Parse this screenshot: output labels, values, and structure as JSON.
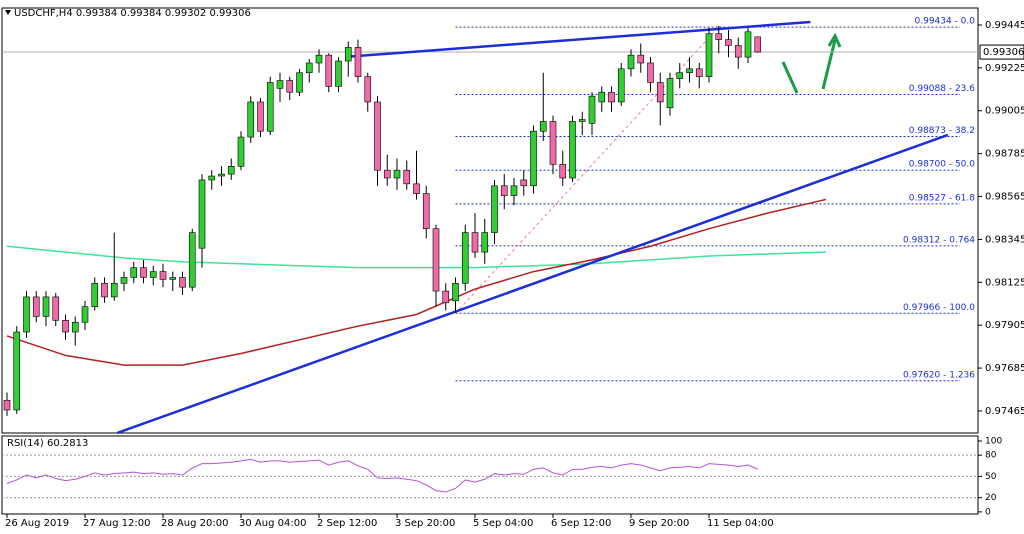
{
  "chart_data": [
    {
      "type": "candlestick",
      "title": "USDCHF,H4  0.99384 0.99384 0.99302 0.99306",
      "up_color": "#32cd32",
      "down_color": "#f06aa8",
      "wick_color": "#000000",
      "candles": [
        [
          0.9752,
          0.9756,
          0.9744,
          0.9747
        ],
        [
          0.9747,
          0.979,
          0.9745,
          0.9787
        ],
        [
          0.9787,
          0.9808,
          0.9784,
          0.9805
        ],
        [
          0.9805,
          0.9808,
          0.9792,
          0.9795
        ],
        [
          0.9795,
          0.9808,
          0.979,
          0.9805
        ],
        [
          0.9805,
          0.9807,
          0.979,
          0.9793
        ],
        [
          0.9793,
          0.9796,
          0.9783,
          0.9787
        ],
        [
          0.9787,
          0.9795,
          0.978,
          0.9792
        ],
        [
          0.9792,
          0.9803,
          0.9788,
          0.98
        ],
        [
          0.98,
          0.9815,
          0.9798,
          0.9812
        ],
        [
          0.9812,
          0.9815,
          0.9802,
          0.9805
        ],
        [
          0.9805,
          0.9838,
          0.9803,
          0.9812
        ],
        [
          0.9812,
          0.9818,
          0.9808,
          0.9815
        ],
        [
          0.9815,
          0.9823,
          0.9812,
          0.982
        ],
        [
          0.982,
          0.9824,
          0.9812,
          0.9815
        ],
        [
          0.9815,
          0.9821,
          0.9811,
          0.9818
        ],
        [
          0.9818,
          0.9822,
          0.981,
          0.9814
        ],
        [
          0.9814,
          0.9818,
          0.9808,
          0.9815
        ],
        [
          0.9815,
          0.9818,
          0.9806,
          0.981
        ],
        [
          0.981,
          0.984,
          0.9808,
          0.9838
        ],
        [
          0.983,
          0.9868,
          0.982,
          0.9865
        ],
        [
          0.9865,
          0.987,
          0.986,
          0.9867
        ],
        [
          0.9867,
          0.9872,
          0.9862,
          0.9868
        ],
        [
          0.9868,
          0.9876,
          0.9865,
          0.9872
        ],
        [
          0.9872,
          0.989,
          0.987,
          0.9887
        ],
        [
          0.9887,
          0.9908,
          0.9884,
          0.9905
        ],
        [
          0.9905,
          0.9907,
          0.9887,
          0.989
        ],
        [
          0.989,
          0.9918,
          0.9888,
          0.9915
        ],
        [
          0.9912,
          0.992,
          0.9905,
          0.9916
        ],
        [
          0.9916,
          0.9918,
          0.9906,
          0.991
        ],
        [
          0.991,
          0.9922,
          0.9908,
          0.992
        ],
        [
          0.992,
          0.9927,
          0.9915,
          0.9925
        ],
        [
          0.9925,
          0.9932,
          0.992,
          0.9929
        ],
        [
          0.9929,
          0.993,
          0.991,
          0.9913
        ],
        [
          0.9913,
          0.9928,
          0.991,
          0.9926
        ],
        [
          0.9926,
          0.9936,
          0.9918,
          0.9933
        ],
        [
          0.9933,
          0.9937,
          0.9915,
          0.9918
        ],
        [
          0.9918,
          0.992,
          0.99,
          0.9905
        ],
        [
          0.9905,
          0.9908,
          0.9862,
          0.987
        ],
        [
          0.987,
          0.9878,
          0.9862,
          0.9866
        ],
        [
          0.9866,
          0.9876,
          0.986,
          0.987
        ],
        [
          0.987,
          0.9875,
          0.986,
          0.9863
        ],
        [
          0.9863,
          0.988,
          0.9855,
          0.9858
        ],
        [
          0.9858,
          0.9862,
          0.9835,
          0.984
        ],
        [
          0.984,
          0.9842,
          0.98,
          0.9808
        ],
        [
          0.9808,
          0.9812,
          0.9798,
          0.9802
        ],
        [
          0.9803,
          0.9815,
          0.9797,
          0.9812
        ],
        [
          0.9812,
          0.9842,
          0.9808,
          0.9838
        ],
        [
          0.9838,
          0.9848,
          0.9825,
          0.9828
        ],
        [
          0.9828,
          0.9845,
          0.9822,
          0.9838
        ],
        [
          0.9838,
          0.9865,
          0.9832,
          0.9862
        ],
        [
          0.9862,
          0.9868,
          0.985,
          0.9857
        ],
        [
          0.9857,
          0.9866,
          0.9852,
          0.9862
        ],
        [
          0.9865,
          0.987,
          0.9857,
          0.9862
        ],
        [
          0.9862,
          0.9893,
          0.9858,
          0.989
        ],
        [
          0.989,
          0.992,
          0.9885,
          0.9895
        ],
        [
          0.9895,
          0.9898,
          0.9868,
          0.9873
        ],
        [
          0.9873,
          0.988,
          0.9862,
          0.9866
        ],
        [
          0.9866,
          0.9898,
          0.9864,
          0.9895
        ],
        [
          0.9895,
          0.99,
          0.9888,
          0.9896
        ],
        [
          0.9894,
          0.991,
          0.9888,
          0.9908
        ],
        [
          0.9905,
          0.9913,
          0.99,
          0.991
        ],
        [
          0.991,
          0.9913,
          0.99,
          0.9905
        ],
        [
          0.9905,
          0.9925,
          0.9903,
          0.9922
        ],
        [
          0.9922,
          0.9932,
          0.9918,
          0.9929
        ],
        [
          0.9929,
          0.9935,
          0.992,
          0.9925
        ],
        [
          0.9925,
          0.9928,
          0.991,
          0.9915
        ],
        [
          0.9915,
          0.992,
          0.9893,
          0.9905
        ],
        [
          0.9902,
          0.992,
          0.9898,
          0.9917
        ],
        [
          0.9917,
          0.9925,
          0.9912,
          0.992
        ],
        [
          0.992,
          0.9928,
          0.9915,
          0.9922
        ],
        [
          0.9922,
          0.9925,
          0.9912,
          0.9918
        ],
        [
          0.9918,
          0.9943,
          0.9915,
          0.994
        ],
        [
          0.994,
          0.9944,
          0.993,
          0.9937
        ],
        [
          0.9937,
          0.9942,
          0.9928,
          0.9934
        ],
        [
          0.9934,
          0.9938,
          0.9922,
          0.9928
        ],
        [
          0.9928,
          0.9943,
          0.9925,
          0.9941
        ],
        [
          0.99384,
          0.99384,
          0.99302,
          0.99306
        ]
      ],
      "ylim": [
        0.97352,
        0.99532
      ],
      "yticks": [
        0.99445,
        0.99225,
        0.99005,
        0.98785,
        0.98565,
        0.98345,
        0.98125,
        0.97905,
        0.97685,
        0.97465
      ],
      "last_price": 0.99306,
      "x_labels": [
        "26 Aug 2019",
        "27 Aug 12:00",
        "28 Aug 20:00",
        "30 Aug 04:00",
        "2 Sep 12:00",
        "3 Sep 20:00",
        "5 Sep 04:00",
        "6 Sep 12:00",
        "9 Sep 20:00",
        "11 Sep 04:00"
      ],
      "moving_averages": [
        {
          "color": "#3ee39a",
          "x": [
            0,
            6,
            12,
            18,
            24,
            30,
            36,
            42,
            48,
            54,
            60,
            66,
            72,
            78,
            84
          ],
          "values": [
            0.9831,
            0.9828,
            0.9825,
            0.9823,
            0.9822,
            0.9821,
            0.982,
            0.982,
            0.982,
            0.9821,
            0.9822,
            0.9824,
            0.9826,
            0.9827,
            0.9828
          ]
        },
        {
          "color": "#b22222",
          "x": [
            0,
            6,
            12,
            18,
            24,
            30,
            36,
            42,
            48,
            54,
            60,
            66,
            72,
            78,
            84
          ],
          "values": [
            0.9785,
            0.9775,
            0.977,
            0.977,
            0.9776,
            0.9783,
            0.979,
            0.9796,
            0.9809,
            0.9818,
            0.9824,
            0.9831,
            0.984,
            0.9848,
            0.9855
          ]
        }
      ],
      "trendlines": [
        {
          "color": "#1c2fd6",
          "points": [
            [
              11.3,
              0.97352
            ],
            [
              96.5,
              0.98881
            ]
          ]
        },
        {
          "color": "#1c2fd6",
          "points": [
            [
              34.7,
              0.99281
            ],
            [
              82.4,
              0.9946
            ]
          ]
        }
      ],
      "fib": {
        "color": "#1c2fd6",
        "line_color": "#f08080",
        "from": 46,
        "to": 73,
        "levels": [
          {
            "value": 0.99434,
            "label": "0.99434 - 0.0"
          },
          {
            "value": 0.99088,
            "label": "0.99088 - 23.6"
          },
          {
            "value": 0.98873,
            "label": "0.98873 - 38.2"
          },
          {
            "value": 0.987,
            "label": "0.98700 - 50.0"
          },
          {
            "value": 0.98527,
            "label": "0.98527 - 61.8"
          },
          {
            "value": 0.98312,
            "label": "0.98312 - 0.764"
          },
          {
            "value": 0.97966,
            "label": "0.97966 - 100.0"
          },
          {
            "value": 0.9762,
            "label": "0.97620 - 1.236"
          }
        ]
      }
    },
    {
      "type": "line",
      "title": "RSI(14) 60.2813",
      "color": "#b454d8",
      "values": [
        40,
        45,
        52,
        48,
        52,
        47,
        44,
        46,
        50,
        55,
        52,
        54,
        55,
        56,
        54,
        55,
        53,
        54,
        52,
        62,
        68,
        68,
        69,
        70,
        72,
        74,
        70,
        72,
        72,
        70,
        71,
        72,
        73,
        66,
        70,
        72,
        65,
        60,
        48,
        47,
        48,
        46,
        44,
        38,
        30,
        28,
        33,
        45,
        42,
        46,
        54,
        52,
        54,
        53,
        60,
        62,
        55,
        52,
        60,
        60,
        63,
        64,
        62,
        66,
        68,
        66,
        62,
        58,
        62,
        63,
        64,
        62,
        68,
        67,
        66,
        64,
        66,
        60.2813
      ],
      "ylim": [
        -3,
        107
      ],
      "yticks": [
        100,
        80,
        50,
        20,
        0
      ]
    }
  ]
}
